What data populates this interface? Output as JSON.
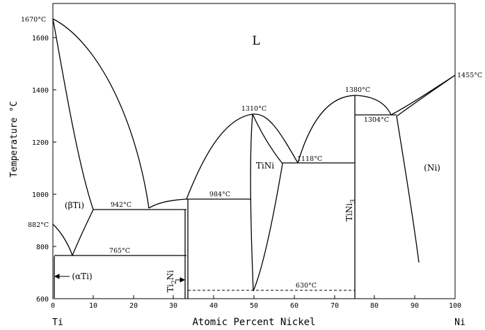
{
  "diagram": {
    "x_axis_title": "Atomic Percent Nickel",
    "y_axis_title": "Temperature °C",
    "left_element": "Ti",
    "right_element": "Ni",
    "liquid_label": "L",
    "x_ticks": [
      "0",
      "10",
      "20",
      "30",
      "40",
      "50",
      "60",
      "70",
      "80",
      "90",
      "100"
    ],
    "y_ticks": [
      "600",
      "800",
      "1000",
      "1200",
      "1400",
      "1600"
    ],
    "temperature_labels": {
      "ti_melting": "1670°C",
      "ni_melting": "1455°C",
      "ti_transition": "882°C",
      "eutectic_ti": "942°C",
      "eutectoid": "765°C",
      "peritectic_984": "984°C",
      "tini_melting": "1310°C",
      "eutectic_1118": "1118°C",
      "tini3_melting": "1380°C",
      "eutectic_1304": "1304°C",
      "tini_decomp": "630°C"
    },
    "phase_labels": {
      "beta_ti": "(βTi)",
      "alpha_ti": "(αTi)",
      "tini": "TiNi",
      "ti2ni": "Ti",
      "ti2ni_sub": "2",
      "ti2ni_tail": "Ni",
      "tini3": "TiNi",
      "tini3_sub": "3",
      "ni": "(Ni)"
    }
  }
}
